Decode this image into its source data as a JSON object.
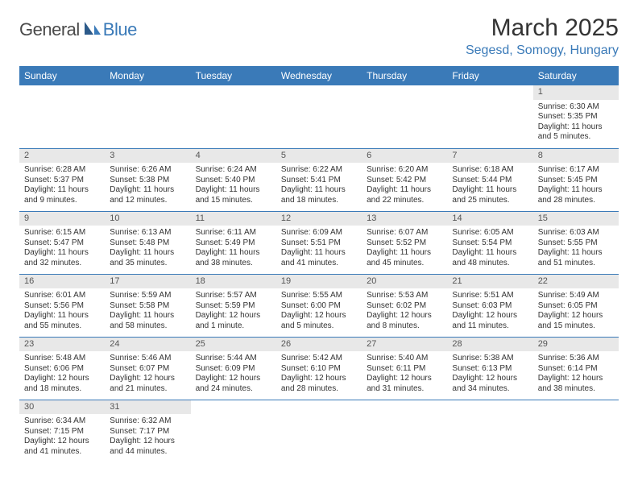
{
  "logo": {
    "part1": "General",
    "part2": "Blue"
  },
  "title": "March 2025",
  "location": "Segesd, Somogy, Hungary",
  "colors": {
    "header_bg": "#3a7ab8",
    "header_fg": "#ffffff",
    "daynum_bg": "#e8e8e8",
    "border": "#3a7ab8",
    "accent": "#3a7ab8"
  },
  "calendar": {
    "day_headers": [
      "Sunday",
      "Monday",
      "Tuesday",
      "Wednesday",
      "Thursday",
      "Friday",
      "Saturday"
    ],
    "weeks": [
      [
        {
          "n": "",
          "l1": "",
          "l2": "",
          "l3": "",
          "l4": "",
          "empty": true
        },
        {
          "n": "",
          "l1": "",
          "l2": "",
          "l3": "",
          "l4": "",
          "empty": true
        },
        {
          "n": "",
          "l1": "",
          "l2": "",
          "l3": "",
          "l4": "",
          "empty": true
        },
        {
          "n": "",
          "l1": "",
          "l2": "",
          "l3": "",
          "l4": "",
          "empty": true
        },
        {
          "n": "",
          "l1": "",
          "l2": "",
          "l3": "",
          "l4": "",
          "empty": true
        },
        {
          "n": "",
          "l1": "",
          "l2": "",
          "l3": "",
          "l4": "",
          "empty": true
        },
        {
          "n": "1",
          "l1": "Sunrise: 6:30 AM",
          "l2": "Sunset: 5:35 PM",
          "l3": "Daylight: 11 hours",
          "l4": "and 5 minutes."
        }
      ],
      [
        {
          "n": "2",
          "l1": "Sunrise: 6:28 AM",
          "l2": "Sunset: 5:37 PM",
          "l3": "Daylight: 11 hours",
          "l4": "and 9 minutes."
        },
        {
          "n": "3",
          "l1": "Sunrise: 6:26 AM",
          "l2": "Sunset: 5:38 PM",
          "l3": "Daylight: 11 hours",
          "l4": "and 12 minutes."
        },
        {
          "n": "4",
          "l1": "Sunrise: 6:24 AM",
          "l2": "Sunset: 5:40 PM",
          "l3": "Daylight: 11 hours",
          "l4": "and 15 minutes."
        },
        {
          "n": "5",
          "l1": "Sunrise: 6:22 AM",
          "l2": "Sunset: 5:41 PM",
          "l3": "Daylight: 11 hours",
          "l4": "and 18 minutes."
        },
        {
          "n": "6",
          "l1": "Sunrise: 6:20 AM",
          "l2": "Sunset: 5:42 PM",
          "l3": "Daylight: 11 hours",
          "l4": "and 22 minutes."
        },
        {
          "n": "7",
          "l1": "Sunrise: 6:18 AM",
          "l2": "Sunset: 5:44 PM",
          "l3": "Daylight: 11 hours",
          "l4": "and 25 minutes."
        },
        {
          "n": "8",
          "l1": "Sunrise: 6:17 AM",
          "l2": "Sunset: 5:45 PM",
          "l3": "Daylight: 11 hours",
          "l4": "and 28 minutes."
        }
      ],
      [
        {
          "n": "9",
          "l1": "Sunrise: 6:15 AM",
          "l2": "Sunset: 5:47 PM",
          "l3": "Daylight: 11 hours",
          "l4": "and 32 minutes."
        },
        {
          "n": "10",
          "l1": "Sunrise: 6:13 AM",
          "l2": "Sunset: 5:48 PM",
          "l3": "Daylight: 11 hours",
          "l4": "and 35 minutes."
        },
        {
          "n": "11",
          "l1": "Sunrise: 6:11 AM",
          "l2": "Sunset: 5:49 PM",
          "l3": "Daylight: 11 hours",
          "l4": "and 38 minutes."
        },
        {
          "n": "12",
          "l1": "Sunrise: 6:09 AM",
          "l2": "Sunset: 5:51 PM",
          "l3": "Daylight: 11 hours",
          "l4": "and 41 minutes."
        },
        {
          "n": "13",
          "l1": "Sunrise: 6:07 AM",
          "l2": "Sunset: 5:52 PM",
          "l3": "Daylight: 11 hours",
          "l4": "and 45 minutes."
        },
        {
          "n": "14",
          "l1": "Sunrise: 6:05 AM",
          "l2": "Sunset: 5:54 PM",
          "l3": "Daylight: 11 hours",
          "l4": "and 48 minutes."
        },
        {
          "n": "15",
          "l1": "Sunrise: 6:03 AM",
          "l2": "Sunset: 5:55 PM",
          "l3": "Daylight: 11 hours",
          "l4": "and 51 minutes."
        }
      ],
      [
        {
          "n": "16",
          "l1": "Sunrise: 6:01 AM",
          "l2": "Sunset: 5:56 PM",
          "l3": "Daylight: 11 hours",
          "l4": "and 55 minutes."
        },
        {
          "n": "17",
          "l1": "Sunrise: 5:59 AM",
          "l2": "Sunset: 5:58 PM",
          "l3": "Daylight: 11 hours",
          "l4": "and 58 minutes."
        },
        {
          "n": "18",
          "l1": "Sunrise: 5:57 AM",
          "l2": "Sunset: 5:59 PM",
          "l3": "Daylight: 12 hours",
          "l4": "and 1 minute."
        },
        {
          "n": "19",
          "l1": "Sunrise: 5:55 AM",
          "l2": "Sunset: 6:00 PM",
          "l3": "Daylight: 12 hours",
          "l4": "and 5 minutes."
        },
        {
          "n": "20",
          "l1": "Sunrise: 5:53 AM",
          "l2": "Sunset: 6:02 PM",
          "l3": "Daylight: 12 hours",
          "l4": "and 8 minutes."
        },
        {
          "n": "21",
          "l1": "Sunrise: 5:51 AM",
          "l2": "Sunset: 6:03 PM",
          "l3": "Daylight: 12 hours",
          "l4": "and 11 minutes."
        },
        {
          "n": "22",
          "l1": "Sunrise: 5:49 AM",
          "l2": "Sunset: 6:05 PM",
          "l3": "Daylight: 12 hours",
          "l4": "and 15 minutes."
        }
      ],
      [
        {
          "n": "23",
          "l1": "Sunrise: 5:48 AM",
          "l2": "Sunset: 6:06 PM",
          "l3": "Daylight: 12 hours",
          "l4": "and 18 minutes."
        },
        {
          "n": "24",
          "l1": "Sunrise: 5:46 AM",
          "l2": "Sunset: 6:07 PM",
          "l3": "Daylight: 12 hours",
          "l4": "and 21 minutes."
        },
        {
          "n": "25",
          "l1": "Sunrise: 5:44 AM",
          "l2": "Sunset: 6:09 PM",
          "l3": "Daylight: 12 hours",
          "l4": "and 24 minutes."
        },
        {
          "n": "26",
          "l1": "Sunrise: 5:42 AM",
          "l2": "Sunset: 6:10 PM",
          "l3": "Daylight: 12 hours",
          "l4": "and 28 minutes."
        },
        {
          "n": "27",
          "l1": "Sunrise: 5:40 AM",
          "l2": "Sunset: 6:11 PM",
          "l3": "Daylight: 12 hours",
          "l4": "and 31 minutes."
        },
        {
          "n": "28",
          "l1": "Sunrise: 5:38 AM",
          "l2": "Sunset: 6:13 PM",
          "l3": "Daylight: 12 hours",
          "l4": "and 34 minutes."
        },
        {
          "n": "29",
          "l1": "Sunrise: 5:36 AM",
          "l2": "Sunset: 6:14 PM",
          "l3": "Daylight: 12 hours",
          "l4": "and 38 minutes."
        }
      ],
      [
        {
          "n": "30",
          "l1": "Sunrise: 6:34 AM",
          "l2": "Sunset: 7:15 PM",
          "l3": "Daylight: 12 hours",
          "l4": "and 41 minutes."
        },
        {
          "n": "31",
          "l1": "Sunrise: 6:32 AM",
          "l2": "Sunset: 7:17 PM",
          "l3": "Daylight: 12 hours",
          "l4": "and 44 minutes."
        },
        {
          "n": "",
          "l1": "",
          "l2": "",
          "l3": "",
          "l4": "",
          "empty": true
        },
        {
          "n": "",
          "l1": "",
          "l2": "",
          "l3": "",
          "l4": "",
          "empty": true
        },
        {
          "n": "",
          "l1": "",
          "l2": "",
          "l3": "",
          "l4": "",
          "empty": true
        },
        {
          "n": "",
          "l1": "",
          "l2": "",
          "l3": "",
          "l4": "",
          "empty": true
        },
        {
          "n": "",
          "l1": "",
          "l2": "",
          "l3": "",
          "l4": "",
          "empty": true
        }
      ]
    ]
  }
}
